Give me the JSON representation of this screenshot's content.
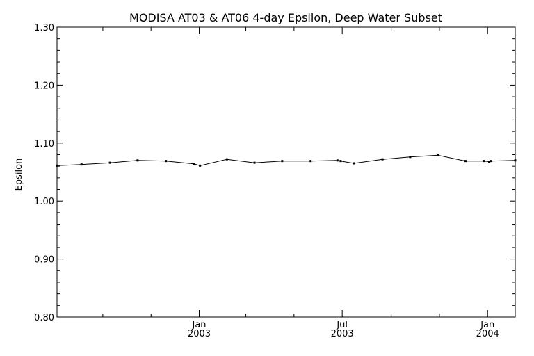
{
  "chart_data": {
    "type": "line",
    "title": "MODISA AT03 & AT06 4-day Epsilon, Deep Water Subset",
    "xlabel": "",
    "ylabel": "Epsilon",
    "ylim": [
      0.8,
      1.3
    ],
    "yticks": [
      "0.80",
      "0.90",
      "1.00",
      "1.10",
      "1.20",
      "1.30"
    ],
    "xlim": [
      "2002-07-05",
      "2004-02-05"
    ],
    "xticks": [
      {
        "date": "2003-01-01",
        "month": "Jan",
        "year": "2003"
      },
      {
        "date": "2003-07-01",
        "month": "Jul",
        "year": "2003"
      },
      {
        "date": "2004-01-01",
        "month": "Jan",
        "year": "2004"
      }
    ],
    "xminor": [
      "2002-09-01",
      "2002-11-01",
      "2003-03-01",
      "2003-05-01",
      "2003-09-01",
      "2003-11-01"
    ],
    "grid": false,
    "series": [
      {
        "points": [
          {
            "x": "2002-07-05",
            "y": 1.061
          },
          {
            "x": "2002-08-05",
            "y": 1.063
          },
          {
            "x": "2002-09-10",
            "y": 1.066
          },
          {
            "x": "2002-10-15",
            "y": 1.07
          },
          {
            "x": "2002-11-20",
            "y": 1.069
          },
          {
            "x": "2002-12-25",
            "y": 1.064
          },
          {
            "x": "2003-01-02",
            "y": 1.061
          },
          {
            "x": "2003-02-05",
            "y": 1.072
          },
          {
            "x": "2003-03-12",
            "y": 1.066
          },
          {
            "x": "2003-04-16",
            "y": 1.069
          },
          {
            "x": "2003-05-22",
            "y": 1.069
          },
          {
            "x": "2003-06-25",
            "y": 1.07
          },
          {
            "x": "2003-06-29",
            "y": 1.069
          },
          {
            "x": "2003-07-16",
            "y": 1.065
          },
          {
            "x": "2003-08-21",
            "y": 1.072
          },
          {
            "x": "2003-09-25",
            "y": 1.076
          },
          {
            "x": "2003-10-30",
            "y": 1.079
          },
          {
            "x": "2003-12-04",
            "y": 1.069
          },
          {
            "x": "2003-12-27",
            "y": 1.069
          },
          {
            "x": "2004-01-03",
            "y": 1.068
          },
          {
            "x": "2004-01-05",
            "y": 1.069
          },
          {
            "x": "2004-02-05",
            "y": 1.07
          }
        ]
      }
    ]
  }
}
